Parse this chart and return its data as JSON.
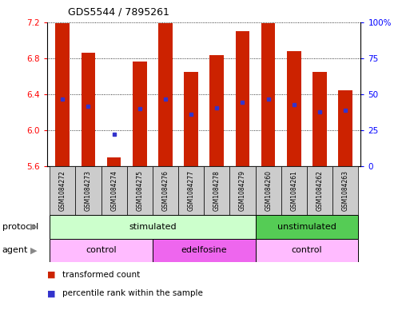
{
  "title": "GDS5544 / 7895261",
  "samples": [
    "GSM1084272",
    "GSM1084273",
    "GSM1084274",
    "GSM1084275",
    "GSM1084276",
    "GSM1084277",
    "GSM1084278",
    "GSM1084279",
    "GSM1084260",
    "GSM1084261",
    "GSM1084262",
    "GSM1084263"
  ],
  "bar_values": [
    7.19,
    6.86,
    5.7,
    6.76,
    7.19,
    6.65,
    6.83,
    7.1,
    7.19,
    6.88,
    6.65,
    6.44
  ],
  "bar_bottom": 5.6,
  "percentile_values": [
    6.35,
    6.27,
    5.96,
    6.24,
    6.35,
    6.18,
    6.25,
    6.31,
    6.35,
    6.28,
    6.2,
    6.22
  ],
  "ylim_left": [
    5.6,
    7.2
  ],
  "ylim_right": [
    0,
    100
  ],
  "yticks_left": [
    5.6,
    6.0,
    6.4,
    6.8,
    7.2
  ],
  "yticks_right": [
    0,
    25,
    50,
    75,
    100
  ],
  "ytick_labels_right": [
    "0",
    "25",
    "50",
    "75",
    "100%"
  ],
  "bar_color": "#cc2200",
  "percentile_color": "#3333cc",
  "grid_color": "#000000",
  "protocol_groups": [
    {
      "label": "stimulated",
      "start": 0,
      "end": 8,
      "color": "#ccffcc"
    },
    {
      "label": "unstimulated",
      "start": 8,
      "end": 12,
      "color": "#55cc55"
    }
  ],
  "agent_groups": [
    {
      "label": "control",
      "start": 0,
      "end": 4,
      "color": "#ffbbff"
    },
    {
      "label": "edelfosine",
      "start": 4,
      "end": 8,
      "color": "#ee66ee"
    },
    {
      "label": "control",
      "start": 8,
      "end": 12,
      "color": "#ffbbff"
    }
  ],
  "xlabel_bg": "#cccccc",
  "legend_red_label": "transformed count",
  "legend_blue_label": "percentile rank within the sample",
  "protocol_label": "protocol",
  "agent_label": "agent",
  "background_color": "#ffffff"
}
